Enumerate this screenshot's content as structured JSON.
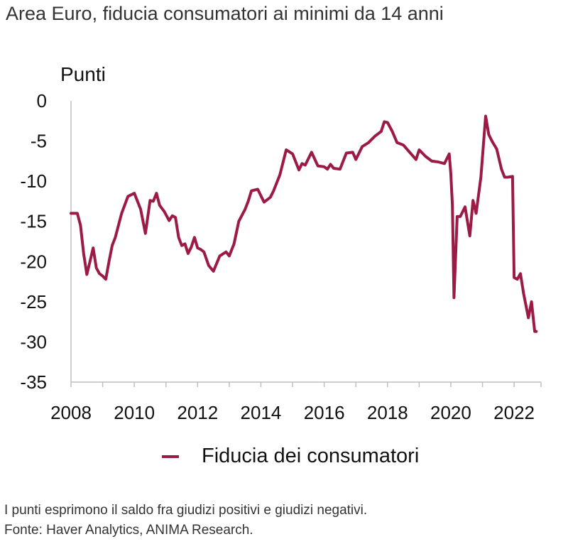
{
  "title": "Area Euro, fiducia consumatori ai minimi da 14 anni",
  "footnotes": {
    "note": "I punti esprimono il saldo fra giudizi positivi e giudizi negativi.",
    "source": "Fonte: Haver Analytics, ANIMA Research."
  },
  "chart_data": {
    "type": "line",
    "ylabel": "Punti",
    "ylim": [
      -35,
      0
    ],
    "yticks": [
      0,
      -5,
      -10,
      -15,
      -20,
      -25,
      -30,
      -35
    ],
    "xlim": [
      2008,
      2022.85
    ],
    "xticks": [
      2008,
      2010,
      2012,
      2014,
      2016,
      2018,
      2020,
      2022
    ],
    "grid": false,
    "legend_position": "bottom",
    "color": "#9b1b45",
    "series": [
      {
        "name": "Fiducia dei consumatori",
        "x": [
          2008.0,
          2008.2,
          2008.3,
          2008.4,
          2008.5,
          2008.6,
          2008.7,
          2008.8,
          2008.9,
          2009.0,
          2009.1,
          2009.2,
          2009.3,
          2009.4,
          2009.6,
          2009.8,
          2010.0,
          2010.2,
          2010.35,
          2010.5,
          2010.6,
          2010.7,
          2010.8,
          2010.95,
          2011.1,
          2011.2,
          2011.3,
          2011.4,
          2011.5,
          2011.6,
          2011.7,
          2011.8,
          2011.9,
          2012.0,
          2012.1,
          2012.2,
          2012.35,
          2012.5,
          2012.7,
          2012.9,
          2013.0,
          2013.15,
          2013.3,
          2013.5,
          2013.6,
          2013.7,
          2013.9,
          2014.1,
          2014.3,
          2014.4,
          2014.6,
          2014.8,
          2015.0,
          2015.2,
          2015.3,
          2015.4,
          2015.5,
          2015.6,
          2015.8,
          2016.0,
          2016.1,
          2016.2,
          2016.3,
          2016.5,
          2016.7,
          2016.9,
          2017.0,
          2017.2,
          2017.4,
          2017.6,
          2017.8,
          2017.9,
          2018.0,
          2018.15,
          2018.3,
          2018.5,
          2018.7,
          2018.9,
          2019.0,
          2019.2,
          2019.4,
          2019.6,
          2019.8,
          2019.95,
          2020.0,
          2020.05,
          2020.1,
          2020.2,
          2020.3,
          2020.45,
          2020.6,
          2020.7,
          2020.8,
          2020.95,
          2021.1,
          2021.2,
          2021.3,
          2021.45,
          2021.6,
          2021.7,
          2021.8,
          2021.95,
          2022.0,
          2022.1,
          2022.2,
          2022.3,
          2022.45,
          2022.55,
          2022.65,
          2022.7
        ],
        "y": [
          -14.0,
          -14.0,
          -15.5,
          -19.0,
          -21.6,
          -20.0,
          -18.3,
          -20.8,
          -21.5,
          -21.8,
          -22.2,
          -20.0,
          -18.0,
          -17.0,
          -14.0,
          -11.9,
          -11.5,
          -13.5,
          -16.5,
          -12.4,
          -12.5,
          -11.5,
          -13.0,
          -13.8,
          -14.9,
          -14.3,
          -14.5,
          -17.0,
          -18.0,
          -17.8,
          -19.0,
          -18.2,
          -17.0,
          -18.3,
          -18.5,
          -18.8,
          -20.5,
          -21.2,
          -19.3,
          -18.8,
          -19.3,
          -17.8,
          -15.0,
          -13.5,
          -12.5,
          -11.2,
          -11.0,
          -12.6,
          -12.0,
          -11.2,
          -9.2,
          -6.1,
          -6.6,
          -8.6,
          -7.8,
          -8.0,
          -7.2,
          -6.4,
          -8.1,
          -8.2,
          -8.5,
          -7.9,
          -8.4,
          -8.5,
          -6.5,
          -6.4,
          -7.3,
          -5.7,
          -5.2,
          -4.4,
          -3.8,
          -2.6,
          -2.7,
          -3.8,
          -5.2,
          -5.5,
          -6.4,
          -7.3,
          -6.1,
          -6.9,
          -7.5,
          -7.6,
          -7.8,
          -6.6,
          -9.0,
          -13.0,
          -24.5,
          -14.4,
          -14.4,
          -13.2,
          -16.8,
          -12.4,
          -14.0,
          -9.5,
          -1.9,
          -4.2,
          -5.0,
          -6.0,
          -8.5,
          -9.5,
          -9.5,
          -9.4,
          -22.0,
          -22.2,
          -21.5,
          -24.0,
          -27.0,
          -25.0,
          -28.7,
          -28.7
        ]
      }
    ]
  }
}
